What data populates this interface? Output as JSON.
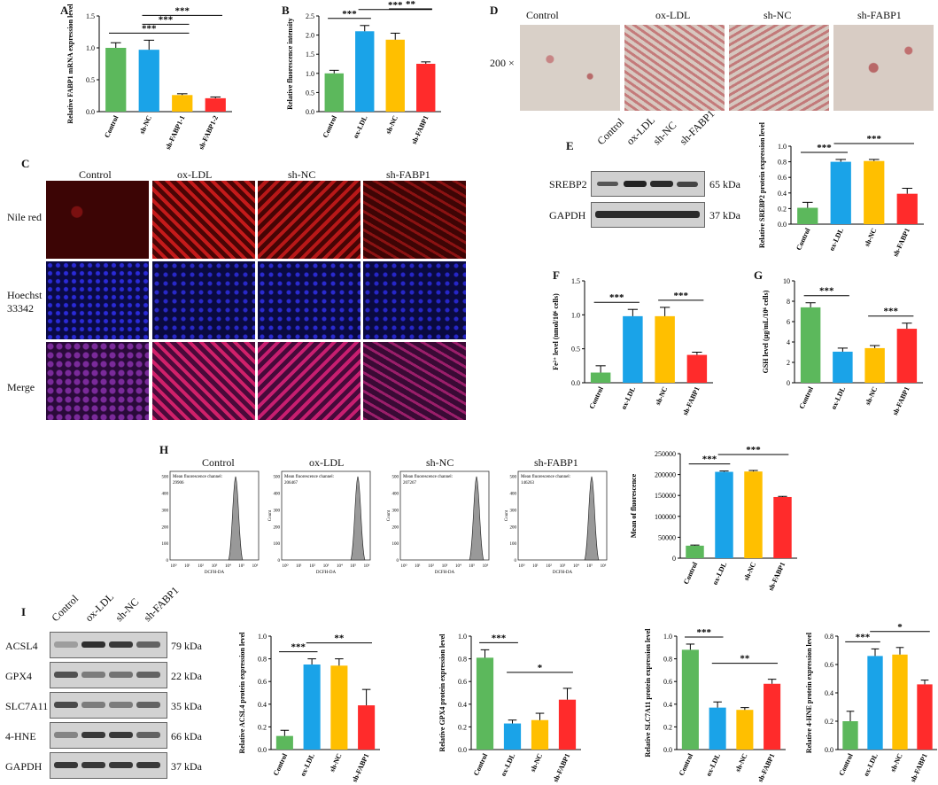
{
  "colors": {
    "control": "#5cb85c",
    "oxldl": "#1aa3e8",
    "shnc": "#ffbf00",
    "shfabp1": "#ff2b2b",
    "stain": "#d48a8a"
  },
  "panels": {
    "A": "A",
    "B": "B",
    "C": "C",
    "D": "D",
    "E": "E",
    "F": "F",
    "G": "G",
    "H": "H",
    "I": "I"
  },
  "groups": [
    "Control",
    "ox-LDL",
    "sh-NC",
    "sh-FABP1"
  ],
  "panelD": {
    "magnification": "200 ×"
  },
  "panelC": {
    "rows": [
      "Nile red",
      "Hoechst 33342",
      "Merge"
    ]
  },
  "panelE": {
    "bands": [
      "SREBP2",
      "GAPDH"
    ],
    "kda": [
      "65 kDa",
      "37 kDa"
    ]
  },
  "panelH": {
    "mean_fluorescence_label": "Mean fluorescence channel:",
    "channels": [
      "29906",
      "206467",
      "207267",
      "146263"
    ],
    "xlabel": "DCFH-DA",
    "ylabel": "Count",
    "yticks": [
      "0",
      "100",
      "200",
      "300",
      "400",
      "500"
    ],
    "xticks": [
      "10⁰",
      "10¹",
      "10²",
      "10³",
      "10⁴",
      "10⁵",
      "10⁶"
    ]
  },
  "panelI": {
    "bands": [
      "ACSL4",
      "GPX4",
      "SLC7A11",
      "4-HNE",
      "GAPDH"
    ],
    "kda": [
      "79 kDa",
      "22 kDa",
      "35 kDa",
      "66 kDa",
      "37 kDa"
    ]
  },
  "chart_data": [
    {
      "id": "A",
      "type": "bar",
      "categories": [
        "Control",
        "sh-NC",
        "sh-FABP1-1",
        "sh-FABP1-2"
      ],
      "values": [
        1.0,
        0.97,
        0.26,
        0.21
      ],
      "errors": [
        0.08,
        0.15,
        0.02,
        0.02
      ],
      "ylabel": "Relative FABP1 mRNA expression level",
      "ylim": [
        0,
        1.5
      ],
      "yticks": [
        0.0,
        0.5,
        1.0,
        1.5
      ],
      "colors": [
        "#5cb85c",
        "#1aa3e8",
        "#ffbf00",
        "#ff2b2b"
      ],
      "sig": [
        {
          "from": 0,
          "to": 2,
          "label": "***"
        },
        {
          "from": 1,
          "to": 2,
          "label": "***"
        },
        {
          "from": 1,
          "to": 3,
          "label": "***"
        }
      ]
    },
    {
      "id": "B",
      "type": "bar",
      "categories": [
        "Control",
        "ox-LDL",
        "sh-NC",
        "sh-FABP1"
      ],
      "values": [
        1.0,
        2.1,
        1.88,
        1.25
      ],
      "errors": [
        0.08,
        0.15,
        0.17,
        0.05
      ],
      "ylabel": "Relative fluorescence intensity",
      "ylim": [
        0,
        2.5
      ],
      "yticks": [
        0.0,
        0.5,
        1.0,
        1.5,
        2.0,
        2.5
      ],
      "colors": [
        "#5cb85c",
        "#1aa3e8",
        "#ffbf00",
        "#ff2b2b"
      ],
      "sig": [
        {
          "from": 0,
          "to": 1,
          "label": "***"
        },
        {
          "from": 1,
          "to": 3,
          "label": "***"
        },
        {
          "from": 2,
          "to": 3,
          "label": "**"
        }
      ]
    },
    {
      "id": "E",
      "type": "bar",
      "categories": [
        "Control",
        "ox-LDL",
        "sh-NC",
        "sh-FABP1"
      ],
      "values": [
        0.21,
        0.8,
        0.81,
        0.39
      ],
      "errors": [
        0.07,
        0.03,
        0.02,
        0.07
      ],
      "ylabel": "Relative SREBP2 protein expression level",
      "ylim": [
        0,
        1.0
      ],
      "yticks": [
        0.0,
        0.2,
        0.4,
        0.6,
        0.8,
        1.0
      ],
      "colors": [
        "#5cb85c",
        "#1aa3e8",
        "#ffbf00",
        "#ff2b2b"
      ],
      "sig": [
        {
          "from": 0,
          "to": 1,
          "label": "***"
        },
        {
          "from": 1,
          "to": 3,
          "label": "***"
        }
      ]
    },
    {
      "id": "F",
      "type": "bar",
      "categories": [
        "Control",
        "ox-LDL",
        "sh-NC",
        "sh-FABP1"
      ],
      "values": [
        0.15,
        0.98,
        0.98,
        0.41
      ],
      "errors": [
        0.1,
        0.1,
        0.13,
        0.04
      ],
      "ylabel": "Fe²⁺ level (nmol/10⁶ cells)",
      "ylim": [
        0,
        1.5
      ],
      "yticks": [
        0.0,
        0.5,
        1.0,
        1.5
      ],
      "colors": [
        "#5cb85c",
        "#1aa3e8",
        "#ffbf00",
        "#ff2b2b"
      ],
      "sig": [
        {
          "from": 0,
          "to": 1,
          "label": "***"
        },
        {
          "from": 2,
          "to": 3,
          "label": "***"
        }
      ]
    },
    {
      "id": "G",
      "type": "bar",
      "categories": [
        "Control",
        "ox-LDL",
        "sh-NC",
        "sh-FABP1"
      ],
      "values": [
        7.4,
        3.05,
        3.4,
        5.3
      ],
      "errors": [
        0.45,
        0.35,
        0.25,
        0.55
      ],
      "ylabel": "GSH level (μg/mL/10⁶ cells)",
      "ylim": [
        0,
        10
      ],
      "yticks": [
        0,
        2,
        4,
        6,
        8,
        10
      ],
      "colors": [
        "#5cb85c",
        "#1aa3e8",
        "#ffbf00",
        "#ff2b2b"
      ],
      "sig": [
        {
          "from": 0,
          "to": 1,
          "label": "***"
        },
        {
          "from": 2,
          "to": 3,
          "label": "***"
        }
      ]
    },
    {
      "id": "H",
      "type": "bar",
      "categories": [
        "Control",
        "ox-LDL",
        "sh-NC",
        "sh-FABP1"
      ],
      "values": [
        29906,
        206467,
        207267,
        146263
      ],
      "errors": [
        1500,
        2000,
        2500,
        1500
      ],
      "ylabel": "Mean of fluorescence",
      "ylim": [
        0,
        250000
      ],
      "yticks": [
        0,
        50000,
        100000,
        150000,
        200000,
        250000
      ],
      "colors": [
        "#5cb85c",
        "#1aa3e8",
        "#ffbf00",
        "#ff2b2b"
      ],
      "sig": [
        {
          "from": 0,
          "to": 1,
          "label": "***"
        },
        {
          "from": 1,
          "to": 3,
          "label": "***"
        }
      ]
    },
    {
      "id": "I1",
      "type": "bar",
      "categories": [
        "Control",
        "ox-LDL",
        "sh-NC",
        "sh-FABP1"
      ],
      "values": [
        0.12,
        0.75,
        0.74,
        0.39
      ],
      "errors": [
        0.05,
        0.05,
        0.06,
        0.14
      ],
      "ylabel": "Relative ACSL4 protein expression level",
      "ylim": [
        0,
        1.0
      ],
      "yticks": [
        0.0,
        0.2,
        0.4,
        0.6,
        0.8,
        1.0
      ],
      "colors": [
        "#5cb85c",
        "#1aa3e8",
        "#ffbf00",
        "#ff2b2b"
      ],
      "sig": [
        {
          "from": 0,
          "to": 1,
          "label": "***"
        },
        {
          "from": 1,
          "to": 3,
          "label": "**"
        }
      ]
    },
    {
      "id": "I2",
      "type": "bar",
      "categories": [
        "Control",
        "ox-LDL",
        "sh-NC",
        "sh-FABP1"
      ],
      "values": [
        0.81,
        0.23,
        0.26,
        0.44
      ],
      "errors": [
        0.07,
        0.03,
        0.06,
        0.1
      ],
      "ylabel": "Relative GPX4 protein expression level",
      "ylim": [
        0,
        1.0
      ],
      "yticks": [
        0.0,
        0.2,
        0.4,
        0.6,
        0.8,
        1.0
      ],
      "colors": [
        "#5cb85c",
        "#1aa3e8",
        "#ffbf00",
        "#ff2b2b"
      ],
      "sig": [
        {
          "from": 0,
          "to": 1,
          "label": "***"
        },
        {
          "from": 1,
          "to": 3,
          "label": "*"
        }
      ]
    },
    {
      "id": "I3",
      "type": "bar",
      "categories": [
        "Control",
        "ox-LDL",
        "sh-NC",
        "sh-FABP1"
      ],
      "values": [
        0.88,
        0.37,
        0.35,
        0.58
      ],
      "errors": [
        0.05,
        0.05,
        0.02,
        0.04
      ],
      "ylabel": "Relative SLC7A11 protein expression level",
      "ylim": [
        0,
        1.0
      ],
      "yticks": [
        0.0,
        0.2,
        0.4,
        0.6,
        0.8,
        1.0
      ],
      "colors": [
        "#5cb85c",
        "#1aa3e8",
        "#ffbf00",
        "#ff2b2b"
      ],
      "sig": [
        {
          "from": 0,
          "to": 1,
          "label": "***"
        },
        {
          "from": 1,
          "to": 3,
          "label": "**"
        }
      ]
    },
    {
      "id": "I4",
      "type": "bar",
      "categories": [
        "Control",
        "ox-LDL",
        "sh-NC",
        "sh-FABP1"
      ],
      "values": [
        0.2,
        0.66,
        0.67,
        0.46
      ],
      "errors": [
        0.07,
        0.05,
        0.05,
        0.03
      ],
      "ylabel": "Relative 4-HNE protein expression level",
      "ylim": [
        0,
        0.8
      ],
      "yticks": [
        0.0,
        0.2,
        0.4,
        0.6,
        0.8
      ],
      "colors": [
        "#5cb85c",
        "#1aa3e8",
        "#ffbf00",
        "#ff2b2b"
      ],
      "sig": [
        {
          "from": 0,
          "to": 1,
          "label": "***"
        },
        {
          "from": 1,
          "to": 3,
          "label": "*"
        }
      ]
    }
  ]
}
